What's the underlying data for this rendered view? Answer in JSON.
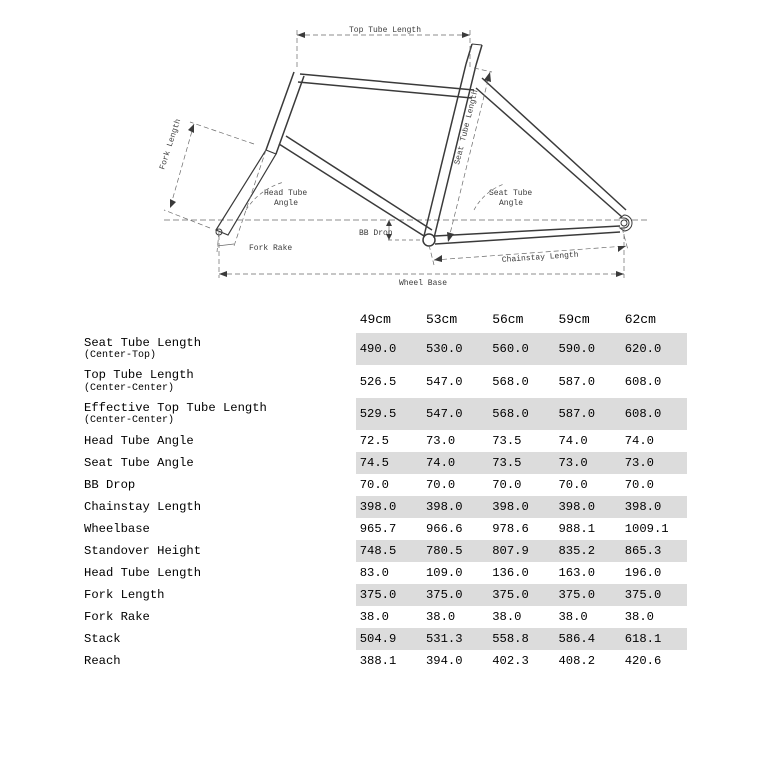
{
  "diagram": {
    "labels": {
      "top_tube_length": "Top Tube Length",
      "fork_length": "Fork Length",
      "head_tube_angle": "Head Tube\nAngle",
      "seat_tube_length": "Seat Tube Length",
      "seat_tube_angle": "Seat Tube\nAngle",
      "bb_drop": "BB Drop",
      "fork_rake": "Fork Rake",
      "chainstay_length": "Chainstay Length",
      "wheel_base": "Wheel Base"
    },
    "stroke_color": "#3a3a3a",
    "dash_color": "#6a6a6a",
    "text_color": "#3a3a3a",
    "label_fontsize": 8,
    "bg": "#ffffff"
  },
  "geometry_table": {
    "columns": [
      "49cm",
      "53cm",
      "56cm",
      "59cm",
      "62cm"
    ],
    "rows": [
      {
        "label": "Seat Tube Length",
        "sub": "(Center-Top)",
        "values": [
          "490.0",
          "530.0",
          "560.0",
          "590.0",
          "620.0"
        ],
        "shade": true
      },
      {
        "label": "Top Tube Length",
        "sub": "(Center-Center)",
        "values": [
          "526.5",
          "547.0",
          "568.0",
          "587.0",
          "608.0"
        ],
        "shade": false
      },
      {
        "label": "Effective Top Tube Length",
        "sub": "(Center-Center)",
        "values": [
          "529.5",
          "547.0",
          "568.0",
          "587.0",
          "608.0"
        ],
        "shade": true
      },
      {
        "label": "Head Tube Angle",
        "sub": "",
        "values": [
          "72.5",
          "73.0",
          "73.5",
          "74.0",
          "74.0"
        ],
        "shade": false
      },
      {
        "label": "Seat Tube Angle",
        "sub": "",
        "values": [
          "74.5",
          "74.0",
          "73.5",
          "73.0",
          "73.0"
        ],
        "shade": true
      },
      {
        "label": "BB Drop",
        "sub": "",
        "values": [
          "70.0",
          "70.0",
          "70.0",
          "70.0",
          "70.0"
        ],
        "shade": false
      },
      {
        "label": "Chainstay Length",
        "sub": "",
        "values": [
          "398.0",
          "398.0",
          "398.0",
          "398.0",
          "398.0"
        ],
        "shade": true
      },
      {
        "label": "Wheelbase",
        "sub": "",
        "values": [
          "965.7",
          "966.6",
          "978.6",
          "988.1",
          "1009.1"
        ],
        "shade": false
      },
      {
        "label": "Standover Height",
        "sub": "",
        "values": [
          "748.5",
          "780.5",
          "807.9",
          "835.2",
          "865.3"
        ],
        "shade": true
      },
      {
        "label": "Head Tube Length",
        "sub": "",
        "values": [
          "83.0",
          "109.0",
          "136.0",
          "163.0",
          "196.0"
        ],
        "shade": false
      },
      {
        "label": "Fork Length",
        "sub": "",
        "values": [
          "375.0",
          "375.0",
          "375.0",
          "375.0",
          "375.0"
        ],
        "shade": true
      },
      {
        "label": "Fork Rake",
        "sub": "",
        "values": [
          "38.0",
          "38.0",
          "38.0",
          "38.0",
          "38.0"
        ],
        "shade": false
      },
      {
        "label": "Stack",
        "sub": "",
        "values": [
          "504.9",
          "531.3",
          "558.8",
          "586.4",
          "618.1"
        ],
        "shade": true
      },
      {
        "label": "Reach",
        "sub": "",
        "values": [
          "388.1",
          "394.0",
          "402.3",
          "408.2",
          "420.6"
        ],
        "shade": false
      }
    ],
    "shade_color": "#dcdcdc",
    "header_fontsize": 13,
    "body_fontsize": 12.2,
    "sub_fontsize": 10
  }
}
